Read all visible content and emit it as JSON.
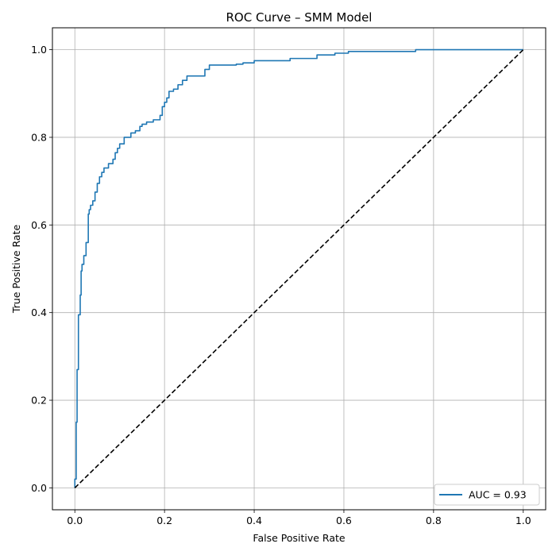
{
  "chart_data": {
    "type": "line",
    "title": "ROC Curve – SMM Model",
    "xlabel": "False Positive Rate",
    "ylabel": "True Positive Rate",
    "xlim": [
      -0.05,
      1.05
    ],
    "ylim": [
      -0.05,
      1.05
    ],
    "xticks": [
      0.0,
      0.2,
      0.4,
      0.6,
      0.8,
      1.0
    ],
    "yticks": [
      0.0,
      0.2,
      0.4,
      0.6,
      0.8,
      1.0
    ],
    "xtick_labels": [
      "0.0",
      "0.2",
      "0.4",
      "0.6",
      "0.8",
      "1.0"
    ],
    "ytick_labels": [
      "0.0",
      "0.2",
      "0.4",
      "0.6",
      "0.8",
      "1.0"
    ],
    "grid": true,
    "legend_position": "lower right",
    "series": [
      {
        "name": "AUC = 0.93",
        "color": "#1f77b4",
        "style": "solid",
        "x": [
          0.0,
          0.0,
          0.003,
          0.003,
          0.005,
          0.005,
          0.008,
          0.008,
          0.012,
          0.012,
          0.014,
          0.014,
          0.016,
          0.016,
          0.02,
          0.02,
          0.025,
          0.025,
          0.03,
          0.03,
          0.032,
          0.032,
          0.035,
          0.035,
          0.04,
          0.04,
          0.045,
          0.045,
          0.05,
          0.05,
          0.055,
          0.055,
          0.06,
          0.06,
          0.065,
          0.065,
          0.075,
          0.075,
          0.085,
          0.085,
          0.09,
          0.09,
          0.095,
          0.095,
          0.1,
          0.1,
          0.11,
          0.11,
          0.125,
          0.125,
          0.135,
          0.135,
          0.145,
          0.145,
          0.15,
          0.15,
          0.16,
          0.16,
          0.175,
          0.175,
          0.19,
          0.19,
          0.195,
          0.195,
          0.2,
          0.2,
          0.205,
          0.205,
          0.21,
          0.21,
          0.22,
          0.22,
          0.23,
          0.23,
          0.24,
          0.24,
          0.25,
          0.25,
          0.29,
          0.29,
          0.3,
          0.3,
          0.36,
          0.36,
          0.375,
          0.375,
          0.4,
          0.4,
          0.45,
          0.45,
          0.48,
          0.48,
          0.54,
          0.54,
          0.58,
          0.58,
          0.61,
          0.61,
          0.76,
          0.76,
          1.0
        ],
        "y": [
          0.0,
          0.02,
          0.02,
          0.15,
          0.15,
          0.27,
          0.27,
          0.395,
          0.395,
          0.44,
          0.44,
          0.495,
          0.495,
          0.51,
          0.51,
          0.53,
          0.53,
          0.56,
          0.56,
          0.625,
          0.625,
          0.635,
          0.635,
          0.645,
          0.645,
          0.655,
          0.655,
          0.675,
          0.675,
          0.695,
          0.695,
          0.71,
          0.71,
          0.72,
          0.72,
          0.73,
          0.73,
          0.74,
          0.74,
          0.75,
          0.75,
          0.765,
          0.765,
          0.775,
          0.775,
          0.785,
          0.785,
          0.8,
          0.8,
          0.81,
          0.81,
          0.815,
          0.815,
          0.825,
          0.825,
          0.83,
          0.83,
          0.835,
          0.835,
          0.84,
          0.84,
          0.85,
          0.85,
          0.87,
          0.87,
          0.88,
          0.88,
          0.89,
          0.89,
          0.905,
          0.905,
          0.91,
          0.91,
          0.92,
          0.92,
          0.93,
          0.93,
          0.94,
          0.94,
          0.955,
          0.955,
          0.965,
          0.965,
          0.967,
          0.967,
          0.97,
          0.97,
          0.975,
          0.975,
          0.975,
          0.975,
          0.98,
          0.98,
          0.988,
          0.988,
          0.992,
          0.992,
          0.996,
          0.996,
          1.0,
          1.0
        ]
      },
      {
        "name": "",
        "color": "#000000",
        "style": "dashed",
        "x": [
          0.0,
          1.0
        ],
        "y": [
          0.0,
          1.0
        ]
      }
    ]
  }
}
